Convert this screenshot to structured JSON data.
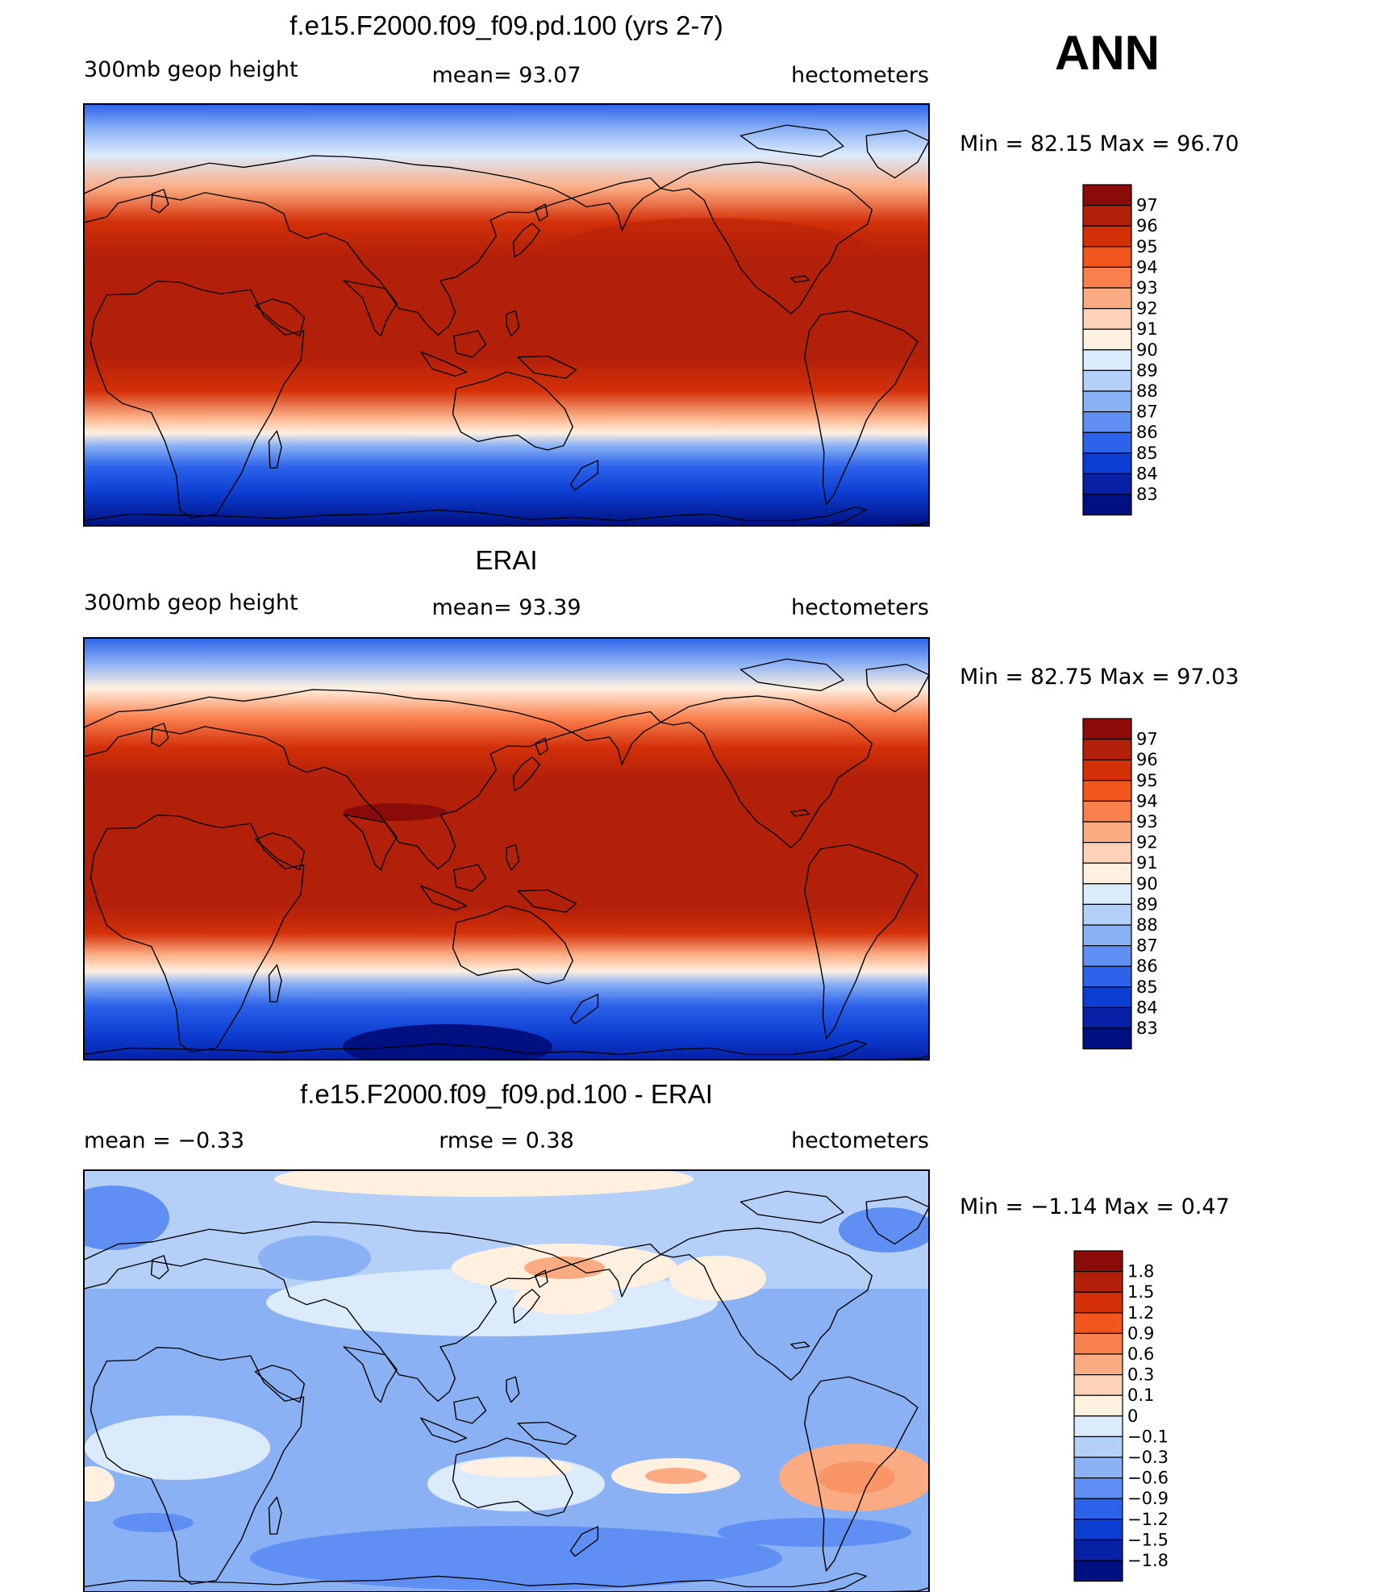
{
  "season_label": "ANN",
  "chart_data": [
    {
      "type": "heatmap",
      "title": "f.e15.F2000.f09_f09.pd.100 (yrs 2-7)",
      "left_label": "300mb  geop  height",
      "center_label": "mean=   93.07",
      "right_label": "hectometers",
      "minmax_label": "Min  =    82.15  Max  =    96.70",
      "colorbar_levels": [
        "97",
        "96",
        "95",
        "94",
        "93",
        "92",
        "91",
        "90",
        "89",
        "88",
        "87",
        "86",
        "85",
        "84",
        "83"
      ],
      "colorbar_colors": [
        "#8b0a0a",
        "#b3200a",
        "#d33008",
        "#f2561c",
        "#f9804e",
        "#fbab82",
        "#fdd2b8",
        "#fff0e0",
        "#dbebfc",
        "#b5d0f8",
        "#8bb1f5",
        "#5f8ff2",
        "#2c63ea",
        "#0c3ed3",
        "#0720a6",
        "#001080"
      ],
      "mean": 93.07,
      "min": 82.15,
      "max": 96.7,
      "units": "hectometers"
    },
    {
      "type": "heatmap",
      "title": "ERAI",
      "left_label": "300mb  geop  height",
      "center_label": "mean=   93.39",
      "right_label": "hectometers",
      "minmax_label": "Min  =    82.75  Max  =    97.03",
      "colorbar_levels": [
        "97",
        "96",
        "95",
        "94",
        "93",
        "92",
        "91",
        "90",
        "89",
        "88",
        "87",
        "86",
        "85",
        "84",
        "83"
      ],
      "colorbar_colors": [
        "#8b0a0a",
        "#b3200a",
        "#d33008",
        "#f2561c",
        "#f9804e",
        "#fbab82",
        "#fdd2b8",
        "#fff0e0",
        "#dbebfc",
        "#b5d0f8",
        "#8bb1f5",
        "#5f8ff2",
        "#2c63ea",
        "#0c3ed3",
        "#0720a6",
        "#001080"
      ],
      "mean": 93.39,
      "min": 82.75,
      "max": 97.03,
      "units": "hectometers"
    },
    {
      "type": "heatmap",
      "title": "f.e15.F2000.f09_f09.pd.100 - ERAI",
      "left_label": "mean  =    −0.33",
      "center_label": "rmse  =     0.38",
      "right_label": "hectometers",
      "minmax_label": "Min  =    −1.14  Max  =       0.47",
      "colorbar_levels": [
        "1.8",
        "1.5",
        "1.2",
        "0.9",
        "0.6",
        "0.3",
        "0.1",
        "0",
        "−0.1",
        "−0.3",
        "−0.6",
        "−0.9",
        "−1.2",
        "−1.5",
        "−1.8"
      ],
      "colorbar_colors": [
        "#8b0a0a",
        "#b3200a",
        "#d33008",
        "#f2561c",
        "#f9804e",
        "#fbab82",
        "#fdd2b8",
        "#fff0e0",
        "#dbebfc",
        "#b5d0f8",
        "#8bb1f5",
        "#5f8ff2",
        "#2c63ea",
        "#0c3ed3",
        "#0720a6",
        "#001080"
      ],
      "mean": -0.33,
      "rmse": 0.38,
      "min": -1.14,
      "max": 0.47,
      "units": "hectometers"
    }
  ]
}
